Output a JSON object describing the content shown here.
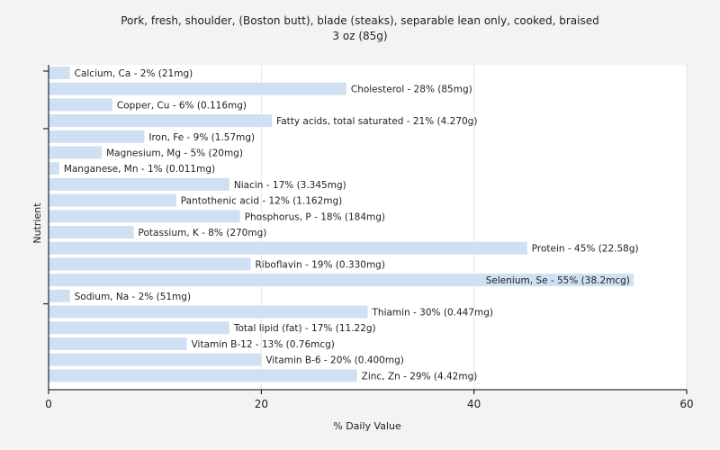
{
  "chart_data": {
    "type": "bar",
    "orientation": "horizontal",
    "title": "Pork, fresh, shoulder, (Boston butt), blade (steaks), separable lean only, cooked, braised",
    "subtitle": "3 oz (85g)",
    "xlabel": "% Daily Value",
    "ylabel": "Nutrient",
    "xlim": [
      0,
      60
    ],
    "xticks": [
      0,
      20,
      40,
      60
    ],
    "grid": true,
    "legend": "none",
    "bar_color": "#cfe0f3",
    "categories": [
      "Calcium, Ca",
      "Cholesterol",
      "Copper, Cu",
      "Fatty acids, total saturated",
      "Iron, Fe",
      "Magnesium, Mg",
      "Manganese, Mn",
      "Niacin",
      "Pantothenic acid",
      "Phosphorus, P",
      "Potassium, K",
      "Protein",
      "Riboflavin",
      "Selenium, Se",
      "Sodium, Na",
      "Thiamin",
      "Total lipid (fat)",
      "Vitamin B-12",
      "Vitamin B-6",
      "Zinc, Zn"
    ],
    "values": [
      2,
      28,
      6,
      21,
      9,
      5,
      1,
      17,
      12,
      18,
      8,
      45,
      19,
      55,
      2,
      30,
      17,
      13,
      20,
      29
    ],
    "data_labels": [
      "Calcium, Ca - 2% (21mg)",
      "Cholesterol - 28% (85mg)",
      "Copper, Cu - 6% (0.116mg)",
      "Fatty acids, total saturated - 21% (4.270g)",
      "Iron, Fe - 9% (1.57mg)",
      "Magnesium, Mg - 5% (20mg)",
      "Manganese, Mn - 1% (0.011mg)",
      "Niacin - 17% (3.345mg)",
      "Pantothenic acid - 12% (1.162mg)",
      "Phosphorus, P - 18% (184mg)",
      "Potassium, K - 8% (270mg)",
      "Protein - 45% (22.58g)",
      "Riboflavin - 19% (0.330mg)",
      "Selenium, Se - 55% (38.2mcg)",
      "Sodium, Na - 2% (51mg)",
      "Thiamin - 30% (0.447mg)",
      "Total lipid (fat) - 17% (11.22g)",
      "Vitamin B-12 - 13% (0.76mcg)",
      "Vitamin B-6 - 20% (0.400mg)",
      "Zinc, Zn - 29% (4.42mg)"
    ]
  }
}
